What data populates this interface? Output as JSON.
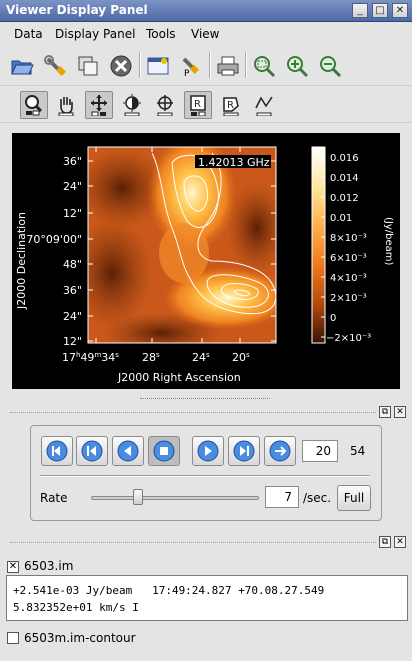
{
  "window": {
    "title": "Viewer Display Panel",
    "buttons": [
      "minimize",
      "maximize",
      "close"
    ]
  },
  "menu": [
    "Data",
    "Display Panel",
    "Tools",
    "View"
  ],
  "toolbar_main": [
    "open-folder",
    "wrench",
    "copy-panels",
    "close-circle",
    "panel-options",
    "print-wrench",
    "printer",
    "zoom-fit",
    "zoom-in",
    "zoom-out"
  ],
  "toolbar_mouse": [
    "zoom-tool",
    "pan-hand",
    "move-cross",
    "contrast",
    "crosshair",
    "rectangle-region",
    "polygon-region",
    "polyline"
  ],
  "display": {
    "frequency_label": "1.42013 GHz",
    "x_axis_label": "J2000 Right Ascension",
    "y_axis_label": "J2000 Declination",
    "x_ticks": [
      {
        "h": "17",
        "m": "49",
        "s": "34",
        "sup_h": "h",
        "sup_m": "m",
        "sup_s": "s"
      },
      {
        "s": "28",
        "sup_s": "s"
      },
      {
        "s": "24",
        "sup_s": "s"
      },
      {
        "s": "20",
        "sup_s": "s"
      }
    ],
    "y_ticks": [
      "36\"",
      "24\"",
      "12\"",
      "70°09'00\"",
      "48\"",
      "36\"",
      "24\"",
      "12\""
    ],
    "colorbar_label": "(Jy/beam)",
    "colorbar_ticks": [
      "0.016",
      "0.014",
      "0.012",
      "0.01",
      "8×10⁻³",
      "6×10⁻³",
      "4×10⁻³",
      "2×10⁻³",
      "0",
      "−2×10⁻³"
    ],
    "colors": {
      "high": "#fff8e0",
      "mid": "#f07a1a",
      "low": "#4a1a04"
    }
  },
  "animator": {
    "frame_value": "20",
    "frame_count": "54",
    "rate_label": "Rate",
    "rate_value": "7",
    "rate_unit": "/sec.",
    "full_label": "Full",
    "rate_fraction": 0.28
  },
  "layers": [
    {
      "name": "6503.im",
      "checked": true
    },
    {
      "name": "6503m.im-contour",
      "checked": false
    }
  ],
  "info": {
    "line1": "+2.541e-03 Jy/beam   17:49:24.827 +70.08.27.549",
    "line2": "5.832352e+01 km/s I"
  }
}
